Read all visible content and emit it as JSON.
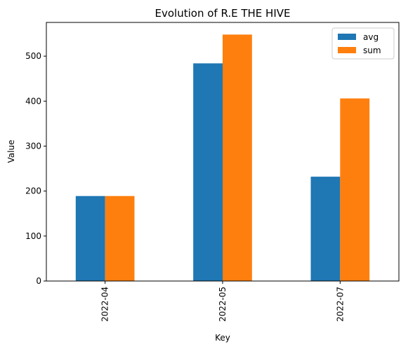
{
  "chart_data": {
    "type": "bar",
    "title": "Evolution of R.E THE HIVE",
    "xlabel": "Key",
    "ylabel": "Value",
    "categories": [
      "2022-04",
      "2022-05",
      "2022-07"
    ],
    "series": [
      {
        "name": "avg",
        "values": [
          189,
          484,
          232
        ],
        "color": "#1f77b4"
      },
      {
        "name": "sum",
        "values": [
          189,
          548,
          406
        ],
        "color": "#ff7f0e"
      }
    ],
    "ylim": [
      0,
      575
    ],
    "yticks": [
      0,
      100,
      200,
      300,
      400,
      500
    ],
    "grid": false,
    "legend_position": "top-right"
  }
}
